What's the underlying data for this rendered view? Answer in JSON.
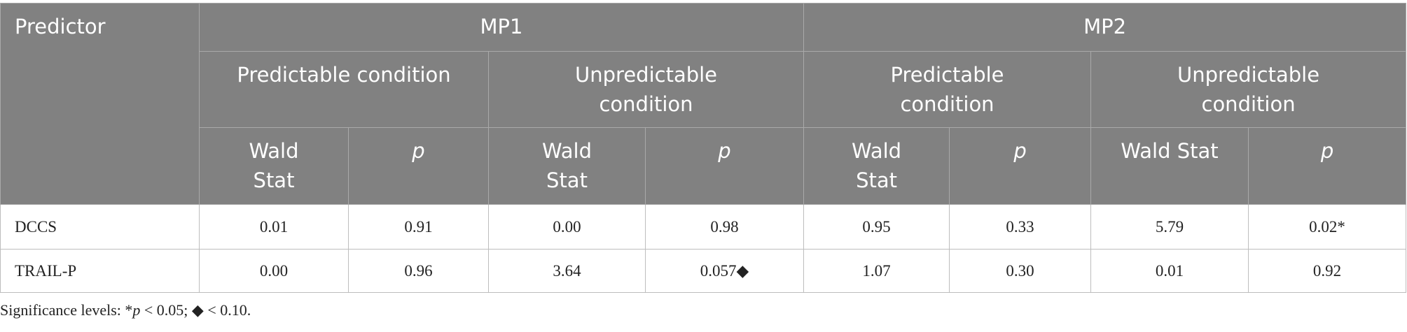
{
  "table": {
    "header": {
      "predictor": "Predictor",
      "groups": [
        "MP1",
        "MP2"
      ],
      "conditions": [
        "Predictable condition",
        "Unpredictable condition",
        "Predictable condition",
        "Unpredictable condition"
      ],
      "stats": [
        "Wald Stat",
        "p",
        "Wald Stat",
        "p",
        "Wald Stat",
        "p",
        "Wald Stat",
        "p"
      ]
    },
    "rows": [
      [
        "DCCS",
        "0.01",
        "0.91",
        "0.00",
        "0.98",
        "0.95",
        "0.33",
        "5.79",
        "0.02*"
      ],
      [
        "TRAIL-P",
        "0.00",
        "0.96",
        "3.64",
        "0.057◆",
        "1.07",
        "0.30",
        "0.01",
        "0.92"
      ]
    ]
  },
  "footnote": [
    "Significance levels: *",
    "p",
    " < 0.05; ◆ < 0.10."
  ]
}
